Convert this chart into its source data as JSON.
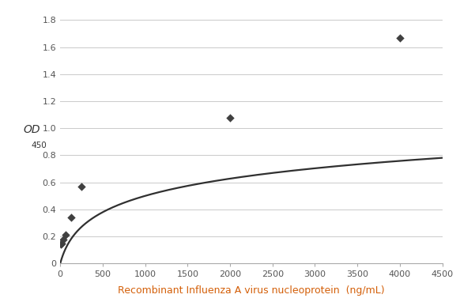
{
  "scatter_x": [
    7.8,
    15.6,
    31.25,
    62.5,
    125,
    250,
    2000,
    4000
  ],
  "scatter_y": [
    0.14,
    0.15,
    0.18,
    0.21,
    0.34,
    0.57,
    1.08,
    1.67
  ],
  "curve_a": 0.195,
  "curve_b": 0.012,
  "xlim": [
    0,
    4500
  ],
  "ylim": [
    0,
    1.9
  ],
  "xticks": [
    0,
    500,
    1000,
    1500,
    2000,
    2500,
    3000,
    3500,
    4000,
    4500
  ],
  "yticks": [
    0,
    0.2,
    0.4,
    0.6,
    0.8,
    1.0,
    1.2,
    1.4,
    1.6,
    1.8
  ],
  "xlabel": "Recombinant Influenza A virus nucleoprotein  (ng/mL)",
  "ylabel_main": "OD",
  "ylabel_sub": "450",
  "xlabel_color": "#d4600a",
  "scatter_color": "#404040",
  "curve_color": "#303030",
  "grid_color": "#cccccc",
  "bg_color": "#ffffff",
  "tick_label_color": "#555555",
  "spine_color": "#aaaaaa"
}
